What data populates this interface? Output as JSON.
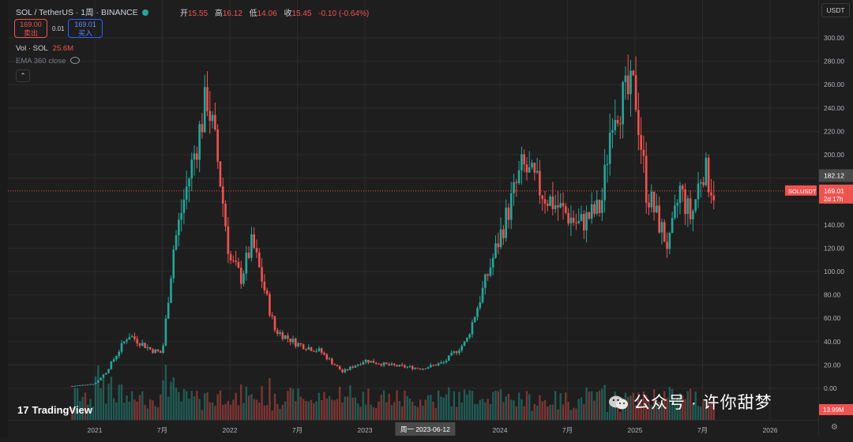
{
  "symbol_title": "SOL / TetherUS · 1周 · BINANCE",
  "ohlc": {
    "open_label": "开",
    "open": "15.55",
    "high_label": "高",
    "high": "16.12",
    "low_label": "低",
    "low": "14.06",
    "close_label": "收",
    "close": "15.45",
    "change": "-0.10 (-0.64%)"
  },
  "trade": {
    "sell_price": "169.00",
    "sell_label": "卖出",
    "spread": "0.01",
    "buy_price": "169.01",
    "buy_label": "买入"
  },
  "volume": {
    "label": "Vol · SOL",
    "value": "25.6M"
  },
  "ema": {
    "label": "EMA 360 close"
  },
  "collapse_glyph": "⌃",
  "currency": "USDT",
  "colors": {
    "up": "#26a69a",
    "down": "#ef5350",
    "background": "#1e1e1e",
    "grid": "#2a2a2a"
  },
  "axis_right": {
    "ticks": [
      "300.00",
      "280.00",
      "260.00",
      "240.00",
      "220.00",
      "200.00",
      "180.00",
      "160.00",
      "140.00",
      "120.00",
      "100.00",
      "80.00",
      "60.00",
      "40.00",
      "20.00",
      "0.00"
    ]
  },
  "price_tags": {
    "crosshair_price": "182.12",
    "symbol_tag": "SOLUSDT",
    "last_price": "169.01",
    "countdown": "2d 17h",
    "volume_tag": "13.99M"
  },
  "axis_bottom": {
    "labels": [
      "2021",
      "7月",
      "2022",
      "7月",
      "2023",
      "2024",
      "7月",
      "2025",
      "7月",
      "2026"
    ],
    "crosshair_date": "周一 2023-06-12"
  },
  "brand": "TradingView",
  "brand_mark": "17",
  "watermark": "公众号 · 许你甜梦",
  "settings_icon": "⚙",
  "chart_data": {
    "type": "candlestick",
    "title": "SOL / TetherUS · 1周 · BINANCE",
    "ylim": [
      0,
      300
    ],
    "y_ticks": [
      0,
      20,
      40,
      60,
      80,
      100,
      120,
      140,
      160,
      180,
      200,
      220,
      240,
      260,
      280,
      300
    ],
    "x_ticks": [
      "2021",
      "7月",
      "2022",
      "7月",
      "2023",
      "2024",
      "7月",
      "2025",
      "7月",
      "2026"
    ],
    "last_price": 169.01,
    "crosshair_price": 182.12,
    "crosshair_date": "2023-06-12",
    "weekly_close_anchors": [
      {
        "date": "2020-11",
        "close": 2
      },
      {
        "date": "2021-01",
        "close": 4
      },
      {
        "date": "2021-02",
        "close": 14
      },
      {
        "date": "2021-04",
        "close": 46
      },
      {
        "date": "2021-06",
        "close": 33
      },
      {
        "date": "2021-07",
        "close": 30
      },
      {
        "date": "2021-08",
        "close": 120
      },
      {
        "date": "2021-09",
        "close": 165
      },
      {
        "date": "2021-11",
        "close": 250
      },
      {
        "date": "2021-12",
        "close": 190
      },
      {
        "date": "2022-01",
        "close": 110
      },
      {
        "date": "2022-02",
        "close": 95
      },
      {
        "date": "2022-03",
        "close": 125
      },
      {
        "date": "2022-05",
        "close": 50
      },
      {
        "date": "2022-07",
        "close": 38
      },
      {
        "date": "2022-09",
        "close": 32
      },
      {
        "date": "2022-11",
        "close": 14
      },
      {
        "date": "2023-01",
        "close": 24
      },
      {
        "date": "2023-03",
        "close": 20
      },
      {
        "date": "2023-06",
        "close": 17
      },
      {
        "date": "2023-08",
        "close": 22
      },
      {
        "date": "2023-10",
        "close": 40
      },
      {
        "date": "2023-12",
        "close": 100
      },
      {
        "date": "2024-03",
        "close": 190
      },
      {
        "date": "2024-05",
        "close": 165
      },
      {
        "date": "2024-08",
        "close": 140
      },
      {
        "date": "2024-10",
        "close": 155
      },
      {
        "date": "2024-11",
        "close": 240
      },
      {
        "date": "2025-01",
        "close": 255
      },
      {
        "date": "2025-02",
        "close": 170
      },
      {
        "date": "2025-04",
        "close": 120
      },
      {
        "date": "2025-05",
        "close": 170
      },
      {
        "date": "2025-06",
        "close": 145
      },
      {
        "date": "2025-07",
        "close": 190
      },
      {
        "date": "2025-08",
        "close": 169
      }
    ]
  }
}
